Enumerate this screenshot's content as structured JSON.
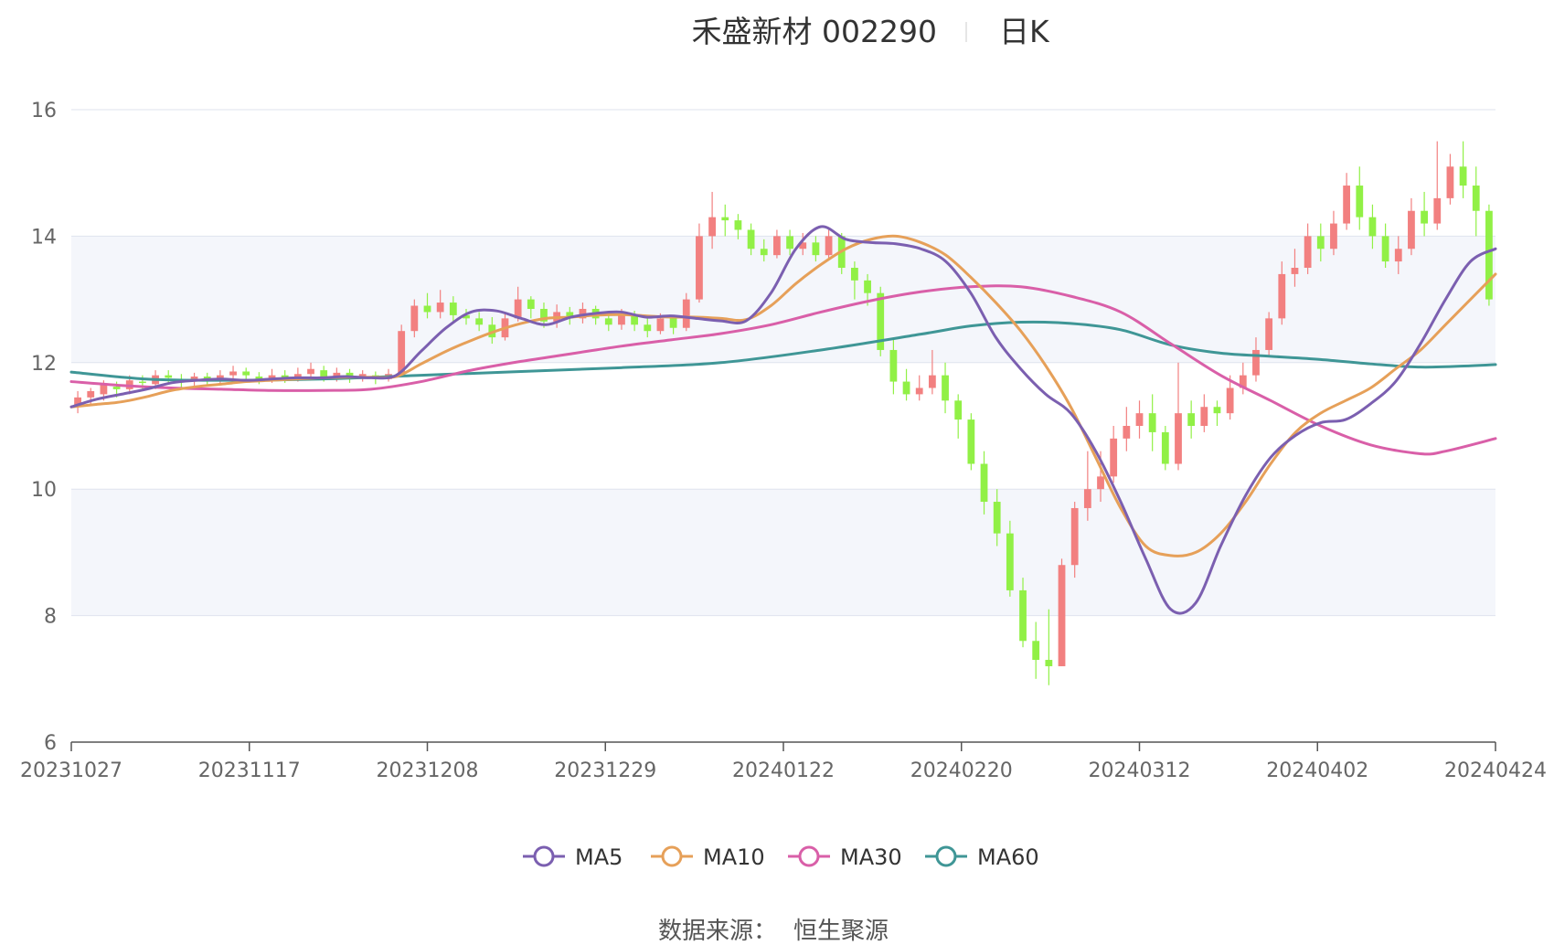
{
  "header": {
    "stock_name": "禾盛新材 002290",
    "period": "日K"
  },
  "source_label": "数据来源：",
  "source_name": "恒生聚源",
  "colors": {
    "up": "#f28080",
    "down": "#91f046",
    "MA5": "#7b5fb0",
    "MA10": "#e6a059",
    "MA30": "#d95fa8",
    "MA60": "#3f9696",
    "band": "#f4f6fb",
    "grid": "#dfe3ee"
  },
  "chart_data": {
    "type": "candlestick",
    "ylim": [
      6,
      16
    ],
    "yticks": [
      "6",
      "8",
      "10",
      "12",
      "14",
      "16"
    ],
    "xticks": [
      "20231027",
      "20231117",
      "20231208",
      "20231229",
      "20240122",
      "20240220",
      "20240312",
      "20240402",
      "20240424"
    ],
    "legend_position": "bottom",
    "legend": [
      {
        "name": "MA5",
        "color": "#7b5fb0"
      },
      {
        "name": "MA10",
        "color": "#e6a059"
      },
      {
        "name": "MA30",
        "color": "#d95fa8"
      },
      {
        "name": "MA60",
        "color": "#3f9696"
      }
    ],
    "x_range": [
      0,
      114
    ],
    "series": [
      {
        "name": "MA5",
        "points": [
          [
            0,
            11.3
          ],
          [
            2,
            11.42
          ],
          [
            4,
            11.5
          ],
          [
            6,
            11.58
          ],
          [
            8,
            11.68
          ],
          [
            10,
            11.72
          ],
          [
            12,
            11.74
          ],
          [
            14,
            11.72
          ],
          [
            16,
            11.74
          ],
          [
            18,
            11.76
          ],
          [
            20,
            11.76
          ],
          [
            22,
            11.78
          ],
          [
            24,
            11.76
          ],
          [
            26,
            11.8
          ],
          [
            28,
            12.18
          ],
          [
            30,
            12.55
          ],
          [
            32,
            12.8
          ],
          [
            34,
            12.82
          ],
          [
            36,
            12.7
          ],
          [
            38,
            12.6
          ],
          [
            40,
            12.72
          ],
          [
            42,
            12.78
          ],
          [
            44,
            12.8
          ],
          [
            46,
            12.72
          ],
          [
            48,
            12.74
          ],
          [
            50,
            12.7
          ],
          [
            52,
            12.66
          ],
          [
            54,
            12.66
          ],
          [
            56,
            13.1
          ],
          [
            58,
            13.8
          ],
          [
            60,
            14.15
          ],
          [
            62,
            13.95
          ],
          [
            64,
            13.9
          ],
          [
            66,
            13.88
          ],
          [
            68,
            13.8
          ],
          [
            70,
            13.6
          ],
          [
            72,
            13.1
          ],
          [
            74,
            12.4
          ],
          [
            76,
            11.9
          ],
          [
            78,
            11.5
          ],
          [
            80,
            11.2
          ],
          [
            82,
            10.6
          ],
          [
            84,
            9.8
          ],
          [
            86,
            8.9
          ],
          [
            88,
            8.1
          ],
          [
            90,
            8.2
          ],
          [
            92,
            9.1
          ],
          [
            94,
            9.9
          ],
          [
            96,
            10.5
          ],
          [
            98,
            10.85
          ],
          [
            100,
            11.05
          ],
          [
            102,
            11.1
          ],
          [
            104,
            11.35
          ],
          [
            106,
            11.7
          ],
          [
            108,
            12.3
          ],
          [
            110,
            13.0
          ],
          [
            112,
            13.6
          ],
          [
            114,
            13.8
          ]
        ]
      },
      {
        "name": "MA10",
        "points": [
          [
            0,
            11.3
          ],
          [
            2,
            11.34
          ],
          [
            4,
            11.38
          ],
          [
            6,
            11.46
          ],
          [
            8,
            11.56
          ],
          [
            10,
            11.62
          ],
          [
            12,
            11.66
          ],
          [
            14,
            11.7
          ],
          [
            16,
            11.72
          ],
          [
            18,
            11.74
          ],
          [
            20,
            11.76
          ],
          [
            22,
            11.77
          ],
          [
            24,
            11.77
          ],
          [
            26,
            11.78
          ],
          [
            28,
            11.98
          ],
          [
            30,
            12.18
          ],
          [
            32,
            12.35
          ],
          [
            34,
            12.5
          ],
          [
            36,
            12.62
          ],
          [
            38,
            12.7
          ],
          [
            40,
            12.72
          ],
          [
            42,
            12.75
          ],
          [
            44,
            12.76
          ],
          [
            46,
            12.74
          ],
          [
            48,
            12.72
          ],
          [
            50,
            12.72
          ],
          [
            52,
            12.7
          ],
          [
            54,
            12.68
          ],
          [
            56,
            12.9
          ],
          [
            58,
            13.25
          ],
          [
            60,
            13.55
          ],
          [
            62,
            13.8
          ],
          [
            64,
            13.95
          ],
          [
            66,
            14.0
          ],
          [
            68,
            13.9
          ],
          [
            70,
            13.7
          ],
          [
            72,
            13.35
          ],
          [
            74,
            12.95
          ],
          [
            76,
            12.5
          ],
          [
            78,
            11.95
          ],
          [
            80,
            11.3
          ],
          [
            82,
            10.5
          ],
          [
            84,
            9.7
          ],
          [
            86,
            9.1
          ],
          [
            88,
            8.95
          ],
          [
            90,
            9.0
          ],
          [
            92,
            9.3
          ],
          [
            94,
            9.8
          ],
          [
            96,
            10.4
          ],
          [
            98,
            10.9
          ],
          [
            100,
            11.2
          ],
          [
            102,
            11.4
          ],
          [
            104,
            11.6
          ],
          [
            106,
            11.9
          ],
          [
            108,
            12.2
          ],
          [
            110,
            12.6
          ],
          [
            112,
            13.0
          ],
          [
            114,
            13.4
          ]
        ]
      },
      {
        "name": "MA30",
        "points": [
          [
            0,
            11.7
          ],
          [
            4,
            11.64
          ],
          [
            8,
            11.6
          ],
          [
            12,
            11.58
          ],
          [
            16,
            11.56
          ],
          [
            20,
            11.56
          ],
          [
            24,
            11.58
          ],
          [
            28,
            11.7
          ],
          [
            32,
            11.88
          ],
          [
            36,
            12.02
          ],
          [
            40,
            12.14
          ],
          [
            44,
            12.26
          ],
          [
            48,
            12.36
          ],
          [
            52,
            12.46
          ],
          [
            56,
            12.6
          ],
          [
            60,
            12.8
          ],
          [
            64,
            12.98
          ],
          [
            68,
            13.12
          ],
          [
            72,
            13.2
          ],
          [
            76,
            13.2
          ],
          [
            80,
            13.05
          ],
          [
            84,
            12.8
          ],
          [
            88,
            12.3
          ],
          [
            92,
            11.8
          ],
          [
            96,
            11.4
          ],
          [
            100,
            11.0
          ],
          [
            104,
            10.7
          ],
          [
            108,
            10.56
          ],
          [
            110,
            10.6
          ],
          [
            114,
            10.8
          ]
        ]
      },
      {
        "name": "MA60",
        "points": [
          [
            0,
            11.85
          ],
          [
            6,
            11.74
          ],
          [
            12,
            11.72
          ],
          [
            20,
            11.74
          ],
          [
            28,
            11.8
          ],
          [
            36,
            11.86
          ],
          [
            44,
            11.92
          ],
          [
            52,
            12.0
          ],
          [
            60,
            12.2
          ],
          [
            68,
            12.45
          ],
          [
            72,
            12.58
          ],
          [
            76,
            12.64
          ],
          [
            80,
            12.62
          ],
          [
            84,
            12.52
          ],
          [
            88,
            12.28
          ],
          [
            92,
            12.15
          ],
          [
            96,
            12.1
          ],
          [
            100,
            12.05
          ],
          [
            104,
            11.98
          ],
          [
            108,
            11.93
          ],
          [
            112,
            11.95
          ],
          [
            114,
            11.97
          ]
        ]
      }
    ],
    "candles_note": "open/close/low/high per trading day in price units",
    "candles": [
      [
        11.3,
        11.45,
        11.2,
        11.55
      ],
      [
        11.45,
        11.55,
        11.35,
        11.6
      ],
      [
        11.5,
        11.65,
        11.4,
        11.72
      ],
      [
        11.62,
        11.58,
        11.45,
        11.7
      ],
      [
        11.58,
        11.72,
        11.5,
        11.8
      ],
      [
        11.7,
        11.68,
        11.55,
        11.8
      ],
      [
        11.66,
        11.8,
        11.58,
        11.88
      ],
      [
        11.8,
        11.76,
        11.66,
        11.88
      ],
      [
        11.74,
        11.7,
        11.6,
        11.82
      ],
      [
        11.7,
        11.78,
        11.62,
        11.84
      ],
      [
        11.78,
        11.72,
        11.64,
        11.84
      ],
      [
        11.72,
        11.8,
        11.64,
        11.88
      ],
      [
        11.8,
        11.86,
        11.72,
        11.95
      ],
      [
        11.86,
        11.8,
        11.7,
        11.92
      ],
      [
        11.78,
        11.74,
        11.66,
        11.85
      ],
      [
        11.74,
        11.8,
        11.68,
        11.9
      ],
      [
        11.8,
        11.76,
        11.68,
        11.88
      ],
      [
        11.76,
        11.82,
        11.7,
        11.92
      ],
      [
        11.82,
        11.9,
        11.75,
        12.0
      ],
      [
        11.88,
        11.78,
        11.7,
        11.95
      ],
      [
        11.78,
        11.84,
        11.7,
        11.92
      ],
      [
        11.84,
        11.76,
        11.68,
        11.9
      ],
      [
        11.76,
        11.82,
        11.7,
        11.88
      ],
      [
        11.8,
        11.74,
        11.66,
        11.86
      ],
      [
        11.74,
        11.82,
        11.7,
        11.9
      ],
      [
        11.82,
        12.5,
        11.8,
        12.6
      ],
      [
        12.5,
        12.9,
        12.4,
        13.0
      ],
      [
        12.9,
        12.8,
        12.7,
        13.1
      ],
      [
        12.8,
        12.95,
        12.7,
        13.15
      ],
      [
        12.95,
        12.75,
        12.65,
        13.05
      ],
      [
        12.75,
        12.7,
        12.6,
        12.85
      ],
      [
        12.7,
        12.6,
        12.5,
        12.8
      ],
      [
        12.6,
        12.4,
        12.3,
        12.72
      ],
      [
        12.4,
        12.7,
        12.35,
        12.8
      ],
      [
        12.7,
        13.0,
        12.65,
        13.2
      ],
      [
        13.0,
        12.85,
        12.7,
        13.05
      ],
      [
        12.85,
        12.65,
        12.55,
        12.95
      ],
      [
        12.65,
        12.8,
        12.55,
        12.92
      ],
      [
        12.8,
        12.7,
        12.6,
        12.88
      ],
      [
        12.7,
        12.85,
        12.62,
        12.95
      ],
      [
        12.85,
        12.7,
        12.6,
        12.9
      ],
      [
        12.7,
        12.6,
        12.5,
        12.8
      ],
      [
        12.6,
        12.75,
        12.52,
        12.85
      ],
      [
        12.75,
        12.6,
        12.5,
        12.82
      ],
      [
        12.6,
        12.5,
        12.4,
        12.7
      ],
      [
        12.5,
        12.7,
        12.45,
        12.78
      ],
      [
        12.7,
        12.55,
        12.45,
        12.75
      ],
      [
        12.55,
        13.0,
        12.5,
        13.1
      ],
      [
        13.0,
        14.0,
        12.95,
        14.2
      ],
      [
        14.0,
        14.3,
        13.8,
        14.7
      ],
      [
        14.3,
        14.25,
        14.0,
        14.5
      ],
      [
        14.25,
        14.1,
        13.95,
        14.35
      ],
      [
        14.1,
        13.8,
        13.7,
        14.2
      ],
      [
        13.8,
        13.7,
        13.6,
        13.95
      ],
      [
        13.7,
        14.0,
        13.65,
        14.1
      ],
      [
        14.0,
        13.8,
        13.7,
        14.1
      ],
      [
        13.8,
        13.9,
        13.7,
        14.05
      ],
      [
        13.9,
        13.7,
        13.6,
        14.0
      ],
      [
        13.7,
        14.0,
        13.65,
        14.1
      ],
      [
        14.0,
        13.5,
        13.4,
        14.05
      ],
      [
        13.5,
        13.3,
        13.0,
        13.6
      ],
      [
        13.3,
        13.1,
        12.9,
        13.4
      ],
      [
        13.1,
        12.2,
        12.1,
        13.2
      ],
      [
        12.2,
        11.7,
        11.5,
        12.4
      ],
      [
        11.7,
        11.5,
        11.4,
        11.9
      ],
      [
        11.5,
        11.6,
        11.4,
        11.8
      ],
      [
        11.6,
        11.8,
        11.5,
        12.2
      ],
      [
        11.8,
        11.4,
        11.2,
        12.0
      ],
      [
        11.4,
        11.1,
        10.8,
        11.5
      ],
      [
        11.1,
        10.4,
        10.3,
        11.2
      ],
      [
        10.4,
        9.8,
        9.6,
        10.6
      ],
      [
        9.8,
        9.3,
        9.1,
        10.0
      ],
      [
        9.3,
        8.4,
        8.3,
        9.5
      ],
      [
        8.4,
        7.6,
        7.5,
        8.6
      ],
      [
        7.6,
        7.3,
        7.0,
        7.9
      ],
      [
        7.3,
        7.2,
        6.9,
        8.1
      ],
      [
        7.2,
        8.8,
        7.2,
        8.9
      ],
      [
        8.8,
        9.7,
        8.6,
        9.8
      ],
      [
        9.7,
        10.0,
        9.5,
        10.6
      ],
      [
        10.0,
        10.2,
        9.8,
        10.6
      ],
      [
        10.2,
        10.8,
        10.1,
        11.0
      ],
      [
        10.8,
        11.0,
        10.6,
        11.3
      ],
      [
        11.0,
        11.2,
        10.8,
        11.4
      ],
      [
        11.2,
        10.9,
        10.6,
        11.5
      ],
      [
        10.9,
        10.4,
        10.3,
        11.0
      ],
      [
        10.4,
        11.2,
        10.3,
        12.0
      ],
      [
        11.2,
        11.0,
        10.8,
        11.4
      ],
      [
        11.0,
        11.3,
        10.9,
        11.5
      ],
      [
        11.3,
        11.2,
        11.0,
        11.4
      ],
      [
        11.2,
        11.6,
        11.1,
        11.8
      ],
      [
        11.6,
        11.8,
        11.5,
        12.0
      ],
      [
        11.8,
        12.2,
        11.7,
        12.4
      ],
      [
        12.2,
        12.7,
        12.1,
        12.8
      ],
      [
        12.7,
        13.4,
        12.6,
        13.6
      ],
      [
        13.4,
        13.5,
        13.2,
        13.8
      ],
      [
        13.5,
        14.0,
        13.4,
        14.2
      ],
      [
        14.0,
        13.8,
        13.6,
        14.2
      ],
      [
        13.8,
        14.2,
        13.7,
        14.4
      ],
      [
        14.2,
        14.8,
        14.1,
        15.0
      ],
      [
        14.8,
        14.3,
        14.1,
        15.1
      ],
      [
        14.3,
        14.0,
        13.8,
        14.5
      ],
      [
        14.0,
        13.6,
        13.5,
        14.2
      ],
      [
        13.6,
        13.8,
        13.4,
        14.0
      ],
      [
        13.8,
        14.4,
        13.7,
        14.6
      ],
      [
        14.4,
        14.2,
        14.0,
        14.7
      ],
      [
        14.2,
        14.6,
        14.1,
        15.5
      ],
      [
        14.6,
        15.1,
        14.5,
        15.3
      ],
      [
        15.1,
        14.8,
        14.6,
        15.5
      ],
      [
        14.8,
        14.4,
        14.0,
        15.1
      ],
      [
        14.4,
        13.0,
        12.9,
        14.5
      ]
    ]
  }
}
